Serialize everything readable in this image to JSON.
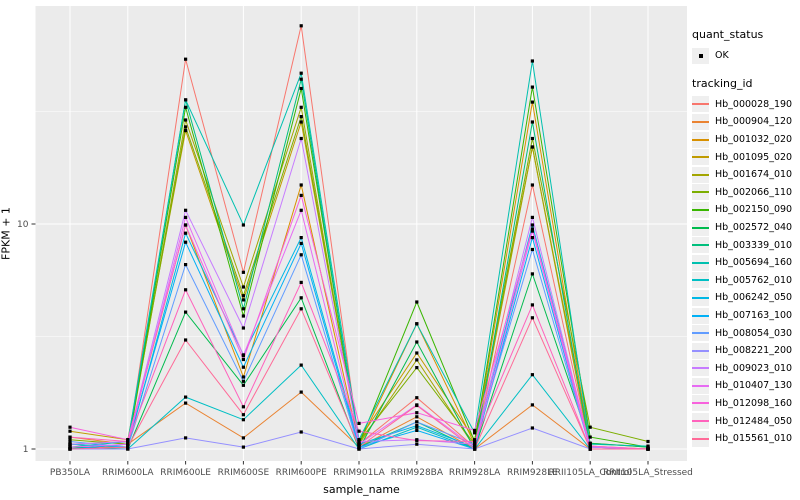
{
  "figure": {
    "bg": "#ffffff",
    "panel_bg": "#ebebeb",
    "grid_color": "#ffffff",
    "axis_text_color": "#4d4d4d",
    "tick_color": "#333333",
    "point_color": "#000000",
    "legend_key_bg": "#efefef"
  },
  "chart_data": {
    "type": "line",
    "title": "",
    "xlabel": "sample_name",
    "ylabel": "FPKM + 1",
    "y_scale": "log10",
    "y_ticks": [
      1,
      10
    ],
    "y_tick_labels": [
      "1",
      "10"
    ],
    "y_minor_breaks": [
      3.162,
      31.62
    ],
    "ylim": [
      0.88,
      95
    ],
    "grid": true,
    "legend_position": "right",
    "categories": [
      "PB350LA",
      "RRIM600LA",
      "RRIM600LE",
      "RRIM600SE",
      "RRIM600PE",
      "RRIM901LA",
      "RRIM928BA",
      "RRIM928LA",
      "RRIM928LE",
      "RRII105LA_Control",
      "RRII105LA_Stressed"
    ],
    "series": [
      {
        "name": "Hb_000028_190",
        "color": "#F8766D",
        "values": [
          1.02,
          1.02,
          54,
          6.1,
          76,
          1.05,
          1.69,
          1.02,
          14.9,
          1.02,
          1.0
        ]
      },
      {
        "name": "Hb_000904_120",
        "color": "#EA8331",
        "values": [
          1.13,
          1.05,
          1.6,
          1.12,
          1.79,
          1.02,
          1.39,
          1.0,
          1.57,
          1.0,
          1.0
        ]
      },
      {
        "name": "Hb_001032_020",
        "color": "#D89000",
        "values": [
          1.05,
          1.08,
          9.9,
          2.09,
          14.9,
          1.05,
          3.6,
          1.05,
          34.8,
          1.03,
          1.0
        ]
      },
      {
        "name": "Hb_001095_020",
        "color": "#C09B00",
        "values": [
          1.2,
          1.1,
          26,
          4.6,
          28.4,
          1.1,
          2.67,
          1.1,
          22,
          1.06,
          1.02
        ]
      },
      {
        "name": "Hb_001674_010",
        "color": "#A3A500",
        "values": [
          1.05,
          1.02,
          29,
          5.25,
          33,
          1.05,
          2.49,
          1.02,
          22,
          1.0,
          1.0
        ]
      },
      {
        "name": "Hb_002066_110",
        "color": "#7CAE00",
        "values": [
          1.1,
          1.05,
          27,
          4.8,
          30,
          1.08,
          2.3,
          1.05,
          24,
          1.25,
          1.08
        ]
      },
      {
        "name": "Hb_002150_090",
        "color": "#39B600",
        "values": [
          1.0,
          1.02,
          33,
          3.9,
          40,
          1.05,
          4.5,
          1.08,
          40.6,
          1.13,
          1.02
        ]
      },
      {
        "name": "Hb_002572_040",
        "color": "#00BB4E",
        "values": [
          1.02,
          1.0,
          4.06,
          1.92,
          4.7,
          1.0,
          2.99,
          1.0,
          6.0,
          1.06,
          1.02
        ]
      },
      {
        "name": "Hb_003339_010",
        "color": "#00BF7D",
        "values": [
          1.0,
          1.05,
          35.6,
          4.2,
          44,
          1.02,
          1.32,
          1.0,
          28.4,
          1.0,
          1.0
        ]
      },
      {
        "name": "Hb_005694_160",
        "color": "#00C0AF",
        "values": [
          1.02,
          1.08,
          35.6,
          9.9,
          46.8,
          1.1,
          3.6,
          1.18,
          53,
          1.05,
          1.03
        ]
      },
      {
        "name": "Hb_005762_010",
        "color": "#00BFC4",
        "values": [
          1.0,
          1.0,
          1.7,
          1.35,
          2.36,
          1.0,
          1.25,
          1.0,
          2.14,
          1.0,
          1.0
        ]
      },
      {
        "name": "Hb_006242_050",
        "color": "#00B8E5",
        "values": [
          1.05,
          1.02,
          9.1,
          2.62,
          8.7,
          1.05,
          1.27,
          1.02,
          9.9,
          1.02,
          1.0
        ]
      },
      {
        "name": "Hb_007163_100",
        "color": "#00B0F6",
        "values": [
          1.0,
          1.05,
          8.3,
          2.31,
          8.2,
          1.02,
          1.21,
          1.0,
          8.7,
          1.0,
          1.0
        ]
      },
      {
        "name": "Hb_008054_030",
        "color": "#619CFF",
        "values": [
          1.08,
          1.02,
          6.6,
          2.0,
          7.3,
          1.0,
          1.32,
          1.05,
          7.7,
          1.0,
          1.0
        ]
      },
      {
        "name": "Hb_008221_200",
        "color": "#9590FF",
        "values": [
          1.0,
          1.0,
          1.12,
          1.02,
          1.19,
          1.0,
          1.05,
          1.0,
          1.24,
          1.0,
          1.0
        ]
      },
      {
        "name": "Hb_009023_010",
        "color": "#C77CFF",
        "values": [
          1.05,
          1.08,
          11.5,
          3.45,
          24,
          1.08,
          1.1,
          1.05,
          10.7,
          1.02,
          1.0
        ]
      },
      {
        "name": "Hb_010407_130",
        "color": "#E76BF3",
        "values": [
          1.02,
          1.05,
          10.7,
          2.6,
          11.5,
          1.05,
          1.57,
          1.02,
          9.3,
          1.0,
          1.0
        ]
      },
      {
        "name": "Hb_012098_160",
        "color": "#F862DD",
        "values": [
          1.25,
          1.1,
          9.9,
          2.5,
          13.4,
          1.3,
          1.45,
          1.21,
          9.5,
          1.03,
          1.0
        ]
      },
      {
        "name": "Hb_012484_050",
        "color": "#FF62BC",
        "values": [
          1.13,
          1.08,
          5.1,
          1.54,
          5.5,
          1.2,
          1.09,
          1.08,
          4.37,
          1.0,
          1.0
        ]
      },
      {
        "name": "Hb_015561_010",
        "color": "#FF6A98",
        "values": [
          1.0,
          1.02,
          3.05,
          1.42,
          4.2,
          1.02,
          1.56,
          1.0,
          3.83,
          1.0,
          1.0
        ]
      }
    ]
  },
  "legend": {
    "quant_status_title": "quant_status",
    "quant_status_items": [
      {
        "label": "OK",
        "shape": "point"
      }
    ],
    "tracking_title": "tracking_id"
  }
}
